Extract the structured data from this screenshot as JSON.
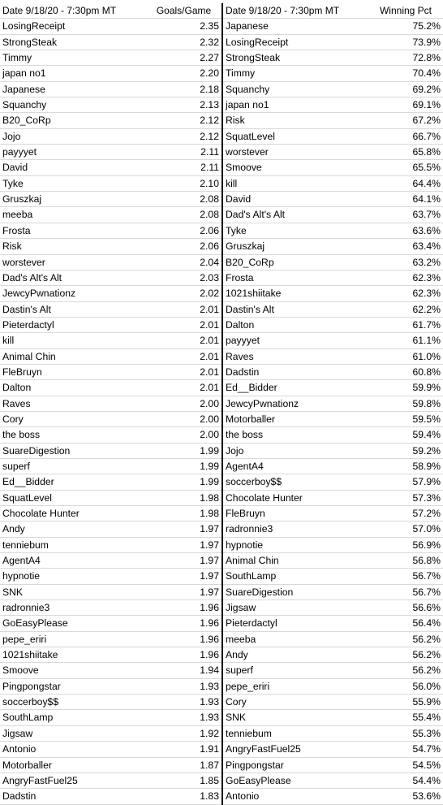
{
  "header": {
    "left_date": "Date 9/18/20 - 7:30pm MT",
    "left_metric": "Goals/Game",
    "right_date": "Date 9/18/20 - 7:30pm MT",
    "right_metric": "Winning Pct"
  },
  "rows": [
    {
      "gname": "LosingReceipt",
      "gval": "2.35",
      "wname": "Japanese",
      "wval": "75.2%"
    },
    {
      "gname": "StrongSteak",
      "gval": "2.32",
      "wname": "LosingReceipt",
      "wval": "73.9%"
    },
    {
      "gname": "Timmy",
      "gval": "2.27",
      "wname": "StrongSteak",
      "wval": "72.8%"
    },
    {
      "gname": "japan no1",
      "gval": "2.20",
      "wname": "Timmy",
      "wval": "70.4%"
    },
    {
      "gname": "Japanese",
      "gval": "2.18",
      "wname": "Squanchy",
      "wval": "69.2%"
    },
    {
      "gname": "Squanchy",
      "gval": "2.13",
      "wname": "japan no1",
      "wval": "69.1%"
    },
    {
      "gname": "B20_CoRp",
      "gval": "2.12",
      "wname": "Risk",
      "wval": "67.2%"
    },
    {
      "gname": "Jojo",
      "gval": "2.12",
      "wname": "SquatLevel",
      "wval": "66.7%"
    },
    {
      "gname": "payyyet",
      "gval": "2.11",
      "wname": "worstever",
      "wval": "65.8%"
    },
    {
      "gname": "David",
      "gval": "2.11",
      "wname": "Smoove",
      "wval": "65.5%"
    },
    {
      "gname": "Tyke",
      "gval": "2.10",
      "wname": "kill",
      "wval": "64.4%"
    },
    {
      "gname": "Gruszkaj",
      "gval": "2.08",
      "wname": "David",
      "wval": "64.1%"
    },
    {
      "gname": "meeba",
      "gval": "2.08",
      "wname": "Dad's Alt's Alt",
      "wval": "63.7%"
    },
    {
      "gname": "Frosta",
      "gval": "2.06",
      "wname": "Tyke",
      "wval": "63.6%"
    },
    {
      "gname": "Risk",
      "gval": "2.06",
      "wname": "Gruszkaj",
      "wval": "63.4%"
    },
    {
      "gname": "worstever",
      "gval": "2.04",
      "wname": "B20_CoRp",
      "wval": "63.2%"
    },
    {
      "gname": "Dad's Alt's Alt",
      "gval": "2.03",
      "wname": "Frosta",
      "wval": "62.3%"
    },
    {
      "gname": "JewcyPwnationz",
      "gval": "2.02",
      "wname": "1021shiitake",
      "wval": "62.3%"
    },
    {
      "gname": "Dastin's Alt",
      "gval": "2.01",
      "wname": "Dastin's Alt",
      "wval": "62.2%"
    },
    {
      "gname": "Pieterdactyl",
      "gval": "2.01",
      "wname": "Dalton",
      "wval": "61.7%"
    },
    {
      "gname": "kill",
      "gval": "2.01",
      "wname": "payyyet",
      "wval": "61.1%"
    },
    {
      "gname": "Animal Chin",
      "gval": "2.01",
      "wname": "Raves",
      "wval": "61.0%"
    },
    {
      "gname": "FleBruyn",
      "gval": "2.01",
      "wname": "Dadstin",
      "wval": "60.8%"
    },
    {
      "gname": "Dalton",
      "gval": "2.01",
      "wname": "Ed__Bidder",
      "wval": "59.9%"
    },
    {
      "gname": "Raves",
      "gval": "2.00",
      "wname": "JewcyPwnationz",
      "wval": "59.8%"
    },
    {
      "gname": "Cory",
      "gval": "2.00",
      "wname": "Motorballer",
      "wval": "59.5%"
    },
    {
      "gname": "the boss",
      "gval": "2.00",
      "wname": "the boss",
      "wval": "59.4%"
    },
    {
      "gname": "SuareDigestion",
      "gval": "1.99",
      "wname": "Jojo",
      "wval": "59.2%"
    },
    {
      "gname": "superf",
      "gval": "1.99",
      "wname": "AgentA4",
      "wval": "58.9%"
    },
    {
      "gname": "Ed__Bidder",
      "gval": "1.99",
      "wname": "soccerboy$$",
      "wval": "57.9%"
    },
    {
      "gname": "SquatLevel",
      "gval": "1.98",
      "wname": "Chocolate Hunter",
      "wval": "57.3%"
    },
    {
      "gname": "Chocolate Hunter",
      "gval": "1.98",
      "wname": "FleBruyn",
      "wval": "57.2%"
    },
    {
      "gname": "Andy",
      "gval": "1.97",
      "wname": "radronnie3",
      "wval": "57.0%"
    },
    {
      "gname": "tenniebum",
      "gval": "1.97",
      "wname": "hypnotie",
      "wval": "56.9%"
    },
    {
      "gname": "AgentA4",
      "gval": "1.97",
      "wname": "Animal Chin",
      "wval": "56.8%"
    },
    {
      "gname": "hypnotie",
      "gval": "1.97",
      "wname": "SouthLamp",
      "wval": "56.7%"
    },
    {
      "gname": "SNK",
      "gval": "1.97",
      "wname": "SuareDigestion",
      "wval": "56.7%"
    },
    {
      "gname": "radronnie3",
      "gval": "1.96",
      "wname": "Jigsaw",
      "wval": "56.6%"
    },
    {
      "gname": "GoEasyPlease",
      "gval": "1.96",
      "wname": "Pieterdactyl",
      "wval": "56.4%"
    },
    {
      "gname": "pepe_eriri",
      "gval": "1.96",
      "wname": "meeba",
      "wval": "56.2%"
    },
    {
      "gname": "1021shiitake",
      "gval": "1.96",
      "wname": "Andy",
      "wval": "56.2%"
    },
    {
      "gname": "Smoove",
      "gval": "1.94",
      "wname": "superf",
      "wval": "56.2%"
    },
    {
      "gname": "Pingpongstar",
      "gval": "1.93",
      "wname": "pepe_eriri",
      "wval": "56.0%"
    },
    {
      "gname": "soccerboy$$",
      "gval": "1.93",
      "wname": "Cory",
      "wval": "55.9%"
    },
    {
      "gname": "SouthLamp",
      "gval": "1.93",
      "wname": "SNK",
      "wval": "55.4%"
    },
    {
      "gname": "Jigsaw",
      "gval": "1.92",
      "wname": "tenniebum",
      "wval": "55.3%"
    },
    {
      "gname": "Antonio",
      "gval": "1.91",
      "wname": "AngryFastFuel25",
      "wval": "54.7%"
    },
    {
      "gname": "Motorballer",
      "gval": "1.87",
      "wname": "Pingpongstar",
      "wval": "54.5%"
    },
    {
      "gname": "AngryFastFuel25",
      "gval": "1.85",
      "wname": "GoEasyPlease",
      "wval": "54.4%"
    },
    {
      "gname": "Dadstin",
      "gval": "1.83",
      "wname": "Antonio",
      "wval": "53.6%"
    }
  ]
}
